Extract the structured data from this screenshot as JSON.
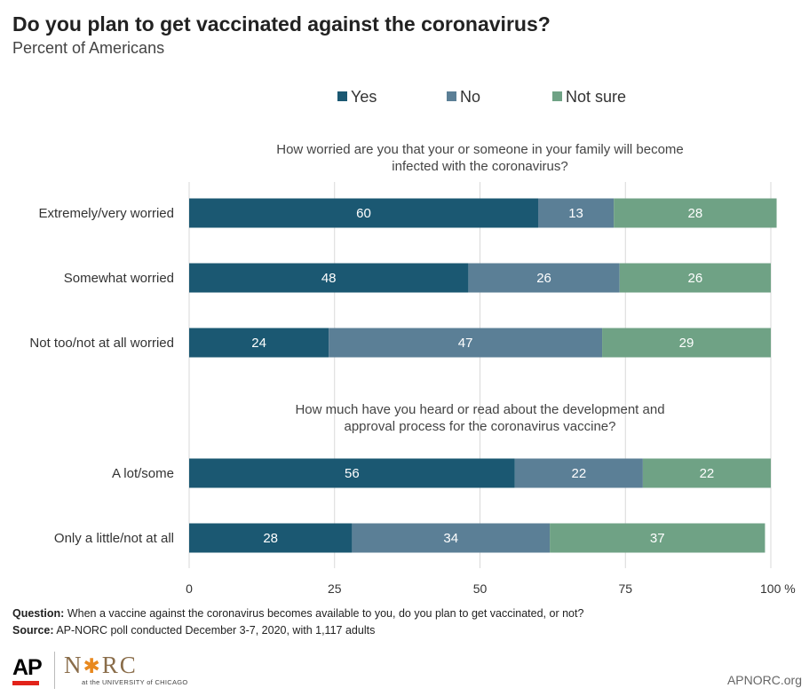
{
  "header": {
    "title": "Do you plan to get vaccinated against the coronavirus?",
    "subtitle": "Percent of Americans"
  },
  "chart_data": {
    "type": "bar",
    "orientation": "horizontal",
    "stacked": true,
    "legend_position": "top",
    "grid": true,
    "xlim": [
      0,
      100
    ],
    "x_ticks": [
      "0",
      "25",
      "50",
      "75",
      "100 %"
    ],
    "series": [
      {
        "name": "Yes",
        "color": "#1b5872"
      },
      {
        "name": "No",
        "color": "#5b7f96"
      },
      {
        "name": "Not sure",
        "color": "#6fa285"
      }
    ],
    "groups": [
      {
        "title_lines": [
          "How worried are you that your or someone in your family will become",
          "infected with the coronavirus?"
        ],
        "rows": [
          {
            "category": "Extremely/very worried",
            "values": [
              60,
              13,
              28
            ]
          },
          {
            "category": "Somewhat worried",
            "values": [
              48,
              26,
              26
            ]
          },
          {
            "category": "Not too/not at all worried",
            "values": [
              24,
              47,
              29
            ]
          }
        ]
      },
      {
        "title_lines": [
          "How much have you heard or read about the development and",
          "approval process for the coronavirus vaccine?"
        ],
        "rows": [
          {
            "category": "A lot/some",
            "values": [
              56,
              22,
              22
            ]
          },
          {
            "category": "Only a little/not at all",
            "values": [
              28,
              34,
              37
            ]
          }
        ]
      }
    ]
  },
  "footer": {
    "question_label": "Question:",
    "question_text": " When a vaccine against the coronavirus becomes available to you, do you plan to get vaccinated, or not?",
    "source_label": "Source:",
    "source_text": " AP-NORC poll conducted December 3-7, 2020,  with 1,117 adults",
    "ap_logo": "AP",
    "norc_logo_left": "N",
    "norc_logo_star": "✱",
    "norc_logo_right": "RC",
    "uchicago_text": "at the UNIVERSITY of CHICAGO",
    "website": "APNORC.org"
  }
}
